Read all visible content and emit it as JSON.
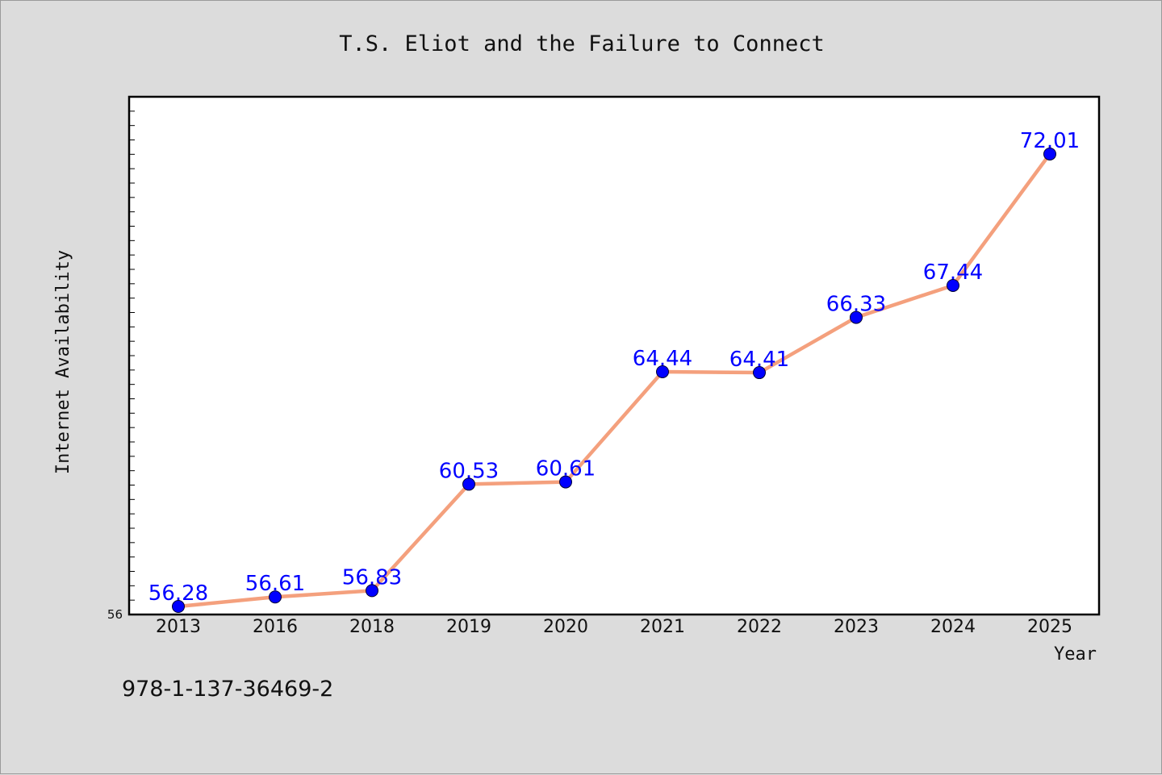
{
  "footer": {
    "code": "978-1-137-36469-2"
  },
  "colors": {
    "line": "#f4a07d",
    "marker": "#0000ff",
    "label": "#0000ff",
    "background": "#dcdcdc",
    "plot_bg": "#ffffff"
  },
  "chart_data": {
    "type": "line",
    "title": "T.S. Eliot and the Failure to Connect",
    "xlabel": "Year",
    "ylabel": "Internet Availability",
    "categories": [
      "2013",
      "2016",
      "2018",
      "2019",
      "2020",
      "2021",
      "2022",
      "2023",
      "2024",
      "2025"
    ],
    "values": [
      56.28,
      56.61,
      56.83,
      60.53,
      60.61,
      64.44,
      64.41,
      66.33,
      67.44,
      72.01
    ],
    "data_labels": [
      "56.28",
      "56.61",
      "56.83",
      "60.53",
      "60.61",
      "64.44",
      "64.41",
      "66.33",
      "67.44",
      "72.01"
    ],
    "ylim": [
      56,
      74
    ],
    "y_min_label": "56",
    "grid": false,
    "legend": "none"
  }
}
